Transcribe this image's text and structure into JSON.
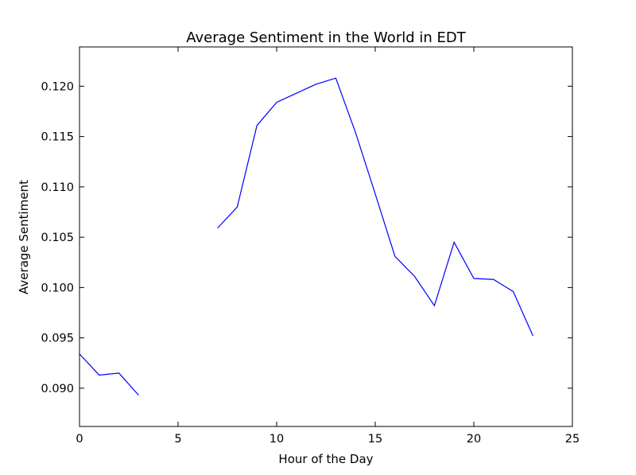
{
  "chart_data": {
    "type": "line",
    "title": "Average Sentiment in the World in EDT",
    "xlabel": "Hour of the Day",
    "ylabel": "Average Sentiment",
    "xlim": [
      0,
      25
    ],
    "ylim": [
      0.0862,
      0.1239
    ],
    "xticks": [
      0,
      5,
      10,
      15,
      20,
      25
    ],
    "xtick_labels": [
      "0",
      "5",
      "10",
      "15",
      "20",
      "25"
    ],
    "yticks": [
      0.09,
      0.095,
      0.1,
      0.105,
      0.11,
      0.115,
      0.12
    ],
    "ytick_labels": [
      "0.090",
      "0.095",
      "0.100",
      "0.105",
      "0.110",
      "0.115",
      "0.120"
    ],
    "grid": false,
    "line_color": "#0000ff",
    "series": [
      {
        "x": [
          0,
          1,
          2,
          3,
          4,
          5,
          6,
          7,
          8,
          9,
          10,
          11,
          12,
          13,
          14,
          15,
          16,
          17,
          18,
          19,
          20,
          21,
          22,
          23
        ],
        "values": [
          0.0934,
          0.0913,
          0.0915,
          0.0893,
          null,
          null,
          null,
          0.1059,
          0.108,
          0.1161,
          0.1184,
          0.1193,
          0.1202,
          0.1208,
          0.1154,
          0.1093,
          0.1031,
          0.1011,
          0.0982,
          0.1045,
          0.1009,
          0.1008,
          0.0996,
          0.0952
        ]
      }
    ]
  }
}
